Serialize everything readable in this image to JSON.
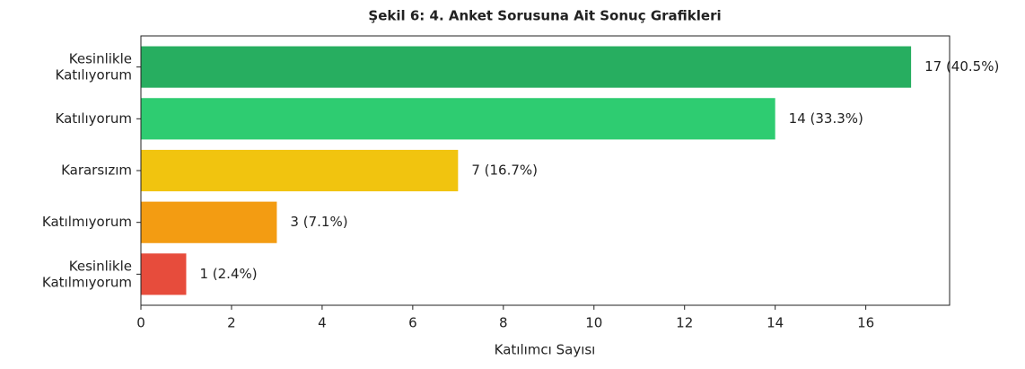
{
  "chart_data": {
    "type": "barh",
    "title": "Şekil 6: 4. Anket Sorusuna Ait Sonuç Grafikleri",
    "categories": [
      "Kesinlikle\nKatılıyorum",
      "Katılıyorum",
      "Kararsızım",
      "Katılmıyorum",
      "Kesinlikle\nKatılmıyorum"
    ],
    "values": [
      17,
      14,
      7,
      3,
      1
    ],
    "value_labels": [
      "17 (40.5%)",
      "14 (33.3%)",
      "7 (16.7%)",
      "3 (7.1%)",
      "1 (2.4%)"
    ],
    "colors": [
      "#27ae60",
      "#2ecc71",
      "#f1c40f",
      "#f39c12",
      "#e74c3c"
    ],
    "xlabel": "Katılımcı Sayısı",
    "xlim": [
      0,
      17.85
    ],
    "xticks": [
      0,
      2,
      4,
      6,
      8,
      10,
      12,
      14,
      16
    ],
    "grid": false
  }
}
